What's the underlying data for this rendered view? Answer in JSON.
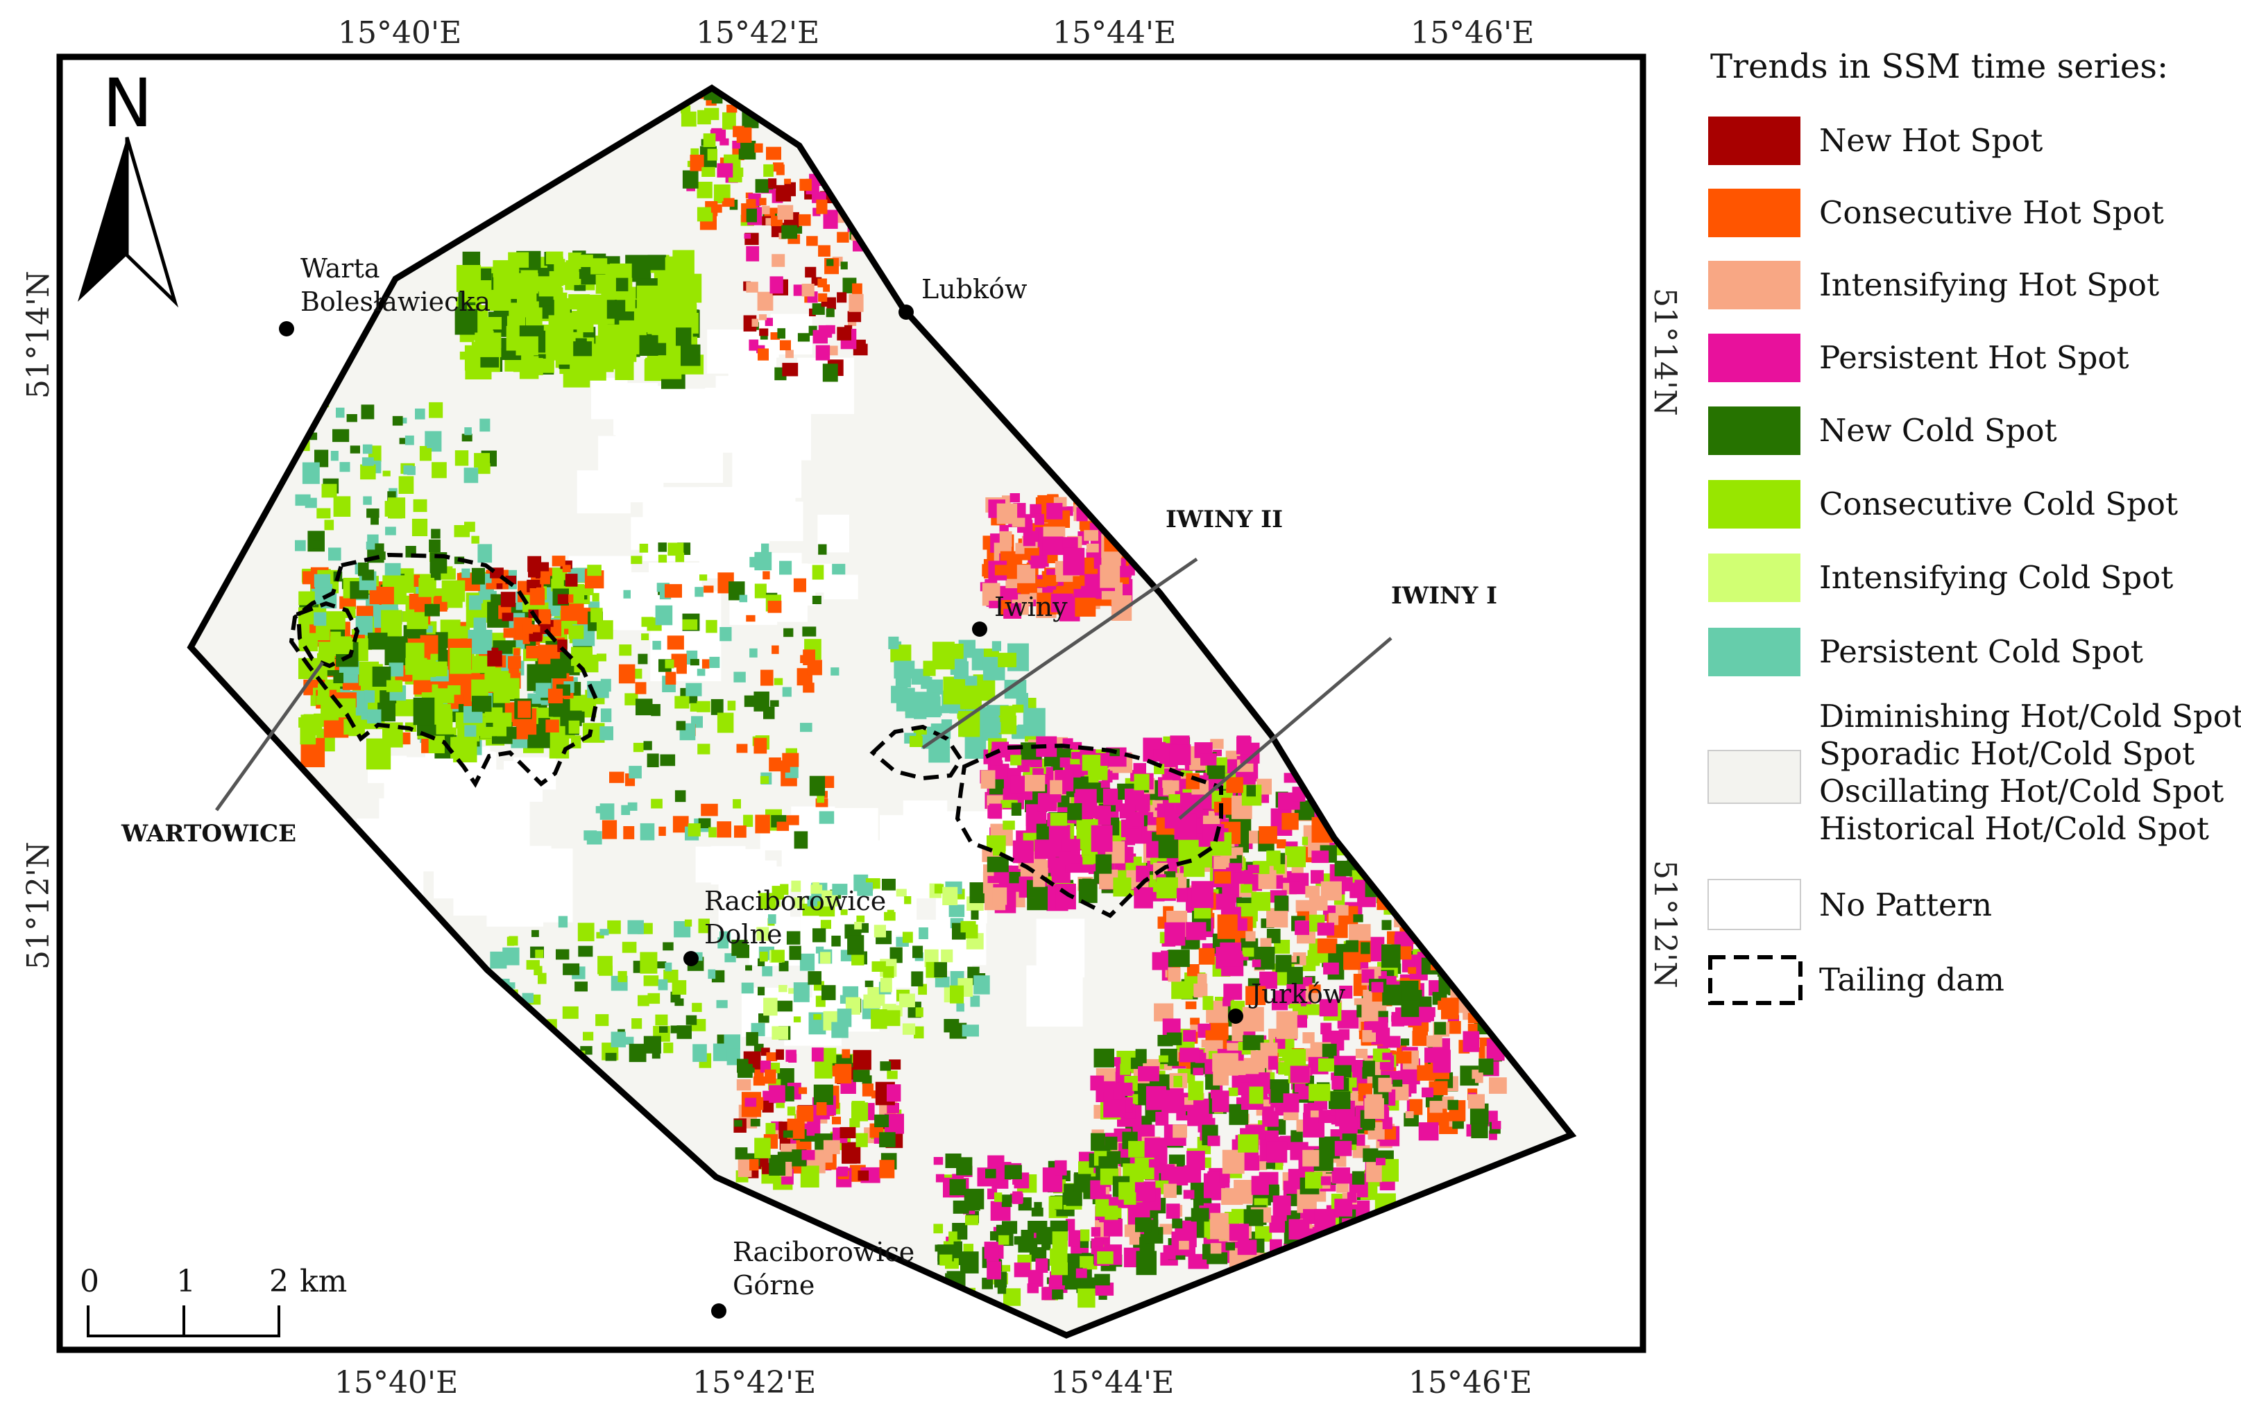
{
  "north_label": "N",
  "coords": {
    "lon_top": [
      "15°40'E",
      "15°42'E",
      "15°44'E",
      "15°46'E"
    ],
    "lon_bottom": [
      "15°40'E",
      "15°42'E",
      "15°44'E",
      "15°46'E"
    ],
    "lat_left": [
      "51°14'N",
      "51°12'N"
    ],
    "lat_right": [
      "51°14'N",
      "51°12'N"
    ]
  },
  "places": [
    {
      "id": "warta",
      "lines": [
        "Warta",
        "Bolesławiecka"
      ]
    },
    {
      "id": "lubkow",
      "lines": [
        "Lubków"
      ]
    },
    {
      "id": "iwiny",
      "lines": [
        "Iwiny"
      ]
    },
    {
      "id": "raciborowice-dolne",
      "lines": [
        "Raciborowice",
        "Dolne"
      ]
    },
    {
      "id": "jurkow",
      "lines": [
        "Jurków"
      ]
    },
    {
      "id": "raciborowice-gorne",
      "lines": [
        "Raciborowice",
        "Górne"
      ]
    }
  ],
  "dams": {
    "iwiny2": "IWINY II",
    "iwiny1": "IWINY I",
    "wartowice": "WARTOWICE"
  },
  "scale": {
    "labels": [
      "0",
      "1",
      "2"
    ],
    "unit": "km"
  },
  "legend": {
    "title": "Trends in SSM time series:",
    "items": [
      {
        "label": "New Hot Spot",
        "color": "#a80000"
      },
      {
        "label": "Consecutive Hot Spot",
        "color": "#ff5500"
      },
      {
        "label": "Intensifying Hot Spot",
        "color": "#f8a784"
      },
      {
        "label": "Persistent Hot Spot",
        "color": "#e8119c"
      },
      {
        "label": "New Cold Spot",
        "color": "#267300"
      },
      {
        "label": "Consecutive Cold Spot",
        "color": "#98e600"
      },
      {
        "label": "Intensifying Cold Spot",
        "color": "#d1ff73"
      },
      {
        "label": "Persistent Cold Spot",
        "color": "#66cdab"
      },
      {
        "lines": [
          "Diminishing Hot/Cold Spot",
          "Sporadic Hot/Cold Spot",
          "Oscillating Hot/Cold Spot",
          "Historical Hot/Cold Spot"
        ],
        "color": "#f3f3ef"
      },
      {
        "label": "No Pattern",
        "color": "#ffffff"
      },
      {
        "label": "Tailing dam",
        "style": "dashed"
      }
    ]
  }
}
